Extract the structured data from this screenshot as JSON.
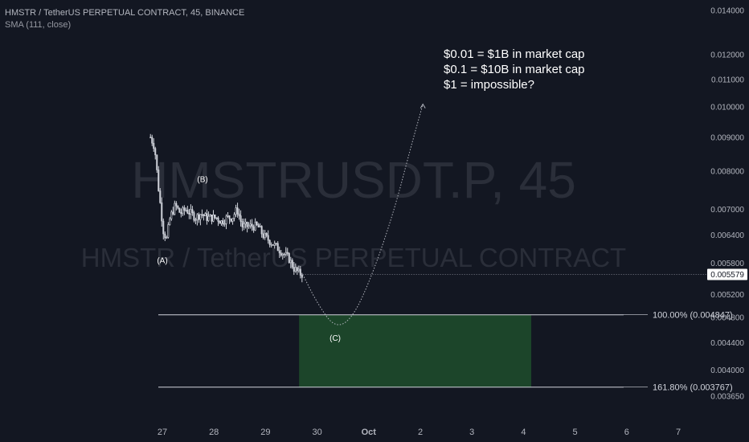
{
  "header": {
    "title": "HMSTR / TetherUS PERPETUAL CONTRACT, 45, BINANCE",
    "indicator": "SMA (111, close)"
  },
  "watermark": {
    "symbol": "HMSTRUSDT.P, 45",
    "description": "HMSTR / TetherUS PERPETUAL CONTRACT"
  },
  "annotations": [
    "$0.01 = $1B in market cap",
    "$0.1 = $10B in market cap",
    "$1 = impossible?"
  ],
  "colors": {
    "background": "#131722",
    "axis_text": "#b2b5be",
    "candles": "#d1d4dc",
    "zone_fill": "#1e4d2b",
    "fib_line": "#d1d4dc",
    "last_price_label_bg": "#ffffff"
  },
  "chart_data": {
    "type": "candlestick",
    "symbol": "HMSTRUSDT.P",
    "interval": "45",
    "exchange": "BINANCE",
    "y_scale": "log",
    "y_ticks": [
      "0.014000",
      "0.012000",
      "0.011000",
      "0.010000",
      "0.009000",
      "0.008000",
      "0.007000",
      "0.006400",
      "0.005800",
      "0.005200",
      "0.004800",
      "0.004400",
      "0.004000",
      "0.003650"
    ],
    "x_ticks": [
      {
        "label": "27",
        "day": 27
      },
      {
        "label": "28",
        "day": 28
      },
      {
        "label": "29",
        "day": 29
      },
      {
        "label": "30",
        "day": 30
      },
      {
        "label": "Oct",
        "day": 31
      },
      {
        "label": "2",
        "day": 32
      },
      {
        "label": "3",
        "day": 33
      },
      {
        "label": "4",
        "day": 34
      },
      {
        "label": "5",
        "day": 35
      },
      {
        "label": "6",
        "day": 36
      },
      {
        "label": "7",
        "day": 37
      }
    ],
    "last_price": "0.005579",
    "price_path": [
      {
        "day": 26.77,
        "price": 0.009
      },
      {
        "day": 26.85,
        "price": 0.0087
      },
      {
        "day": 26.92,
        "price": 0.0076
      },
      {
        "day": 26.97,
        "price": 0.007
      },
      {
        "day": 27.02,
        "price": 0.0065
      },
      {
        "day": 27.08,
        "price": 0.0063
      },
      {
        "day": 27.15,
        "price": 0.0068
      },
      {
        "day": 27.25,
        "price": 0.0071
      },
      {
        "day": 27.35,
        "price": 0.0069
      },
      {
        "day": 27.45,
        "price": 0.007
      },
      {
        "day": 27.55,
        "price": 0.0069
      },
      {
        "day": 27.65,
        "price": 0.0068
      },
      {
        "day": 27.75,
        "price": 0.0069
      },
      {
        "day": 27.85,
        "price": 0.0068
      },
      {
        "day": 27.95,
        "price": 0.0068
      },
      {
        "day": 28.05,
        "price": 0.0068
      },
      {
        "day": 28.15,
        "price": 0.0067
      },
      {
        "day": 28.25,
        "price": 0.0068
      },
      {
        "day": 28.35,
        "price": 0.0068
      },
      {
        "day": 28.45,
        "price": 0.007
      },
      {
        "day": 28.55,
        "price": 0.0066
      },
      {
        "day": 28.65,
        "price": 0.0066
      },
      {
        "day": 28.75,
        "price": 0.0066
      },
      {
        "day": 28.85,
        "price": 0.0066
      },
      {
        "day": 28.95,
        "price": 0.0064
      },
      {
        "day": 29.05,
        "price": 0.0063
      },
      {
        "day": 29.15,
        "price": 0.0062
      },
      {
        "day": 29.25,
        "price": 0.0061
      },
      {
        "day": 29.35,
        "price": 0.006
      },
      {
        "day": 29.45,
        "price": 0.0059
      },
      {
        "day": 29.55,
        "price": 0.0057
      },
      {
        "day": 29.65,
        "price": 0.0056
      },
      {
        "day": 29.72,
        "price": 0.00558
      }
    ],
    "waves": [
      {
        "label": "(A)",
        "day": 27.0,
        "price": 0.0058
      },
      {
        "label": "(B)",
        "day": 27.78,
        "price": 0.0077
      },
      {
        "label": "(C)",
        "day": 30.35,
        "price": 0.00443
      }
    ],
    "projection": [
      {
        "day": 29.72,
        "price": 0.00558
      },
      {
        "day": 30.0,
        "price": 0.00505
      },
      {
        "day": 30.35,
        "price": 0.00462
      },
      {
        "day": 30.7,
        "price": 0.0048
      },
      {
        "day": 31.1,
        "price": 0.00565
      },
      {
        "day": 31.5,
        "price": 0.007
      },
      {
        "day": 31.8,
        "price": 0.0086
      },
      {
        "day": 32.05,
        "price": 0.0101
      }
    ],
    "target_zone": {
      "day_start": 29.65,
      "day_end": 34.15,
      "price_top": 0.004847,
      "price_bottom": 0.003767
    },
    "fib_levels": [
      {
        "label": "100.00% (0.004847)",
        "price": 0.004847
      },
      {
        "label": "161.80% (0.003767)",
        "price": 0.003767
      }
    ]
  }
}
